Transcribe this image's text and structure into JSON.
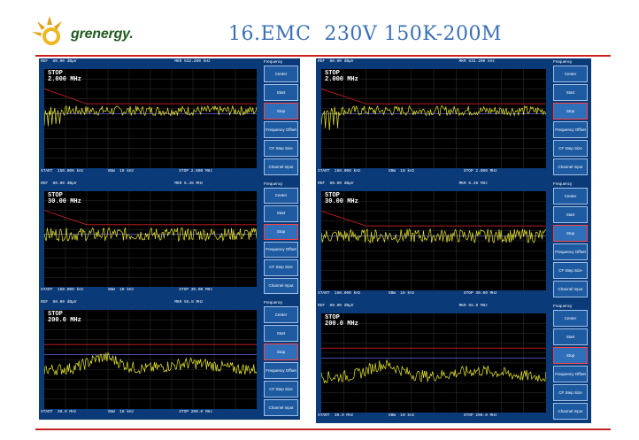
{
  "header": {
    "logo_text": "grenergy.",
    "title": "16.EMC  230V 150K-200M"
  },
  "colors": {
    "accent": "#3a6fb6",
    "rule": "#c8201e",
    "trace": "#e8e82a",
    "limit": "#d02020"
  },
  "softkeys": {
    "menu_title": "Frequency",
    "center": "Center",
    "start": "Start",
    "stop": "Stop",
    "freq_offset": "Frequency Offset",
    "on_off": "ON   OFF",
    "cf_step": "CF Step Size",
    "auto_man": "AUTO  MAN",
    "channel_input": "Channel Input"
  },
  "panels": [
    {
      "id": "l1",
      "stop_label": "STOP",
      "stop_value": "2.000 MHz",
      "ref": "REF  80.00 dBμV",
      "mkr": "MKR 532.200 kHz",
      "start": "START  150.000 kHz",
      "stopf": "STOP 2.000 MHz"
    },
    {
      "id": "r1",
      "stop_label": "STOP",
      "stop_value": "2.000 MHz",
      "ref": "REF  80.00 dBμV",
      "mkr": "MKR 532.200 kHz",
      "start": "START  150.000 kHz",
      "stopf": "STOP 2.000 MHz"
    },
    {
      "id": "l2",
      "stop_label": "STOP",
      "stop_value": "30.00 MHz",
      "ref": "REF  80.00 dBμV",
      "mkr": "MKR 6.48 MHz",
      "start": "START  150.000 kHz",
      "stopf": "STOP 30.00 MHz"
    },
    {
      "id": "r2",
      "stop_label": "STOP",
      "stop_value": "30.00 MHz",
      "ref": "REF  80.00 dBμV",
      "mkr": "MKR 6.48 MHz",
      "start": "START  150.000 kHz",
      "stopf": "STOP 30.00 MHz"
    },
    {
      "id": "l3",
      "stop_label": "STOP",
      "stop_value": "200.0 MHz",
      "ref": "REF  80.00 dBμV",
      "mkr": "MKR 55.8 MHz",
      "start": "START  30.0 MHz",
      "stopf": "STOP 200.0 MHz"
    },
    {
      "id": "r3",
      "stop_label": "STOP",
      "stop_value": "200.0 MHz",
      "ref": "REF  80.00 dBμV",
      "mkr": "MKR 55.8 MHz",
      "start": "START  30.0 MHz",
      "stopf": "STOP 200.0 MHz"
    }
  ],
  "labels": {
    "vbw": "VBW  10 kHz",
    "swp": "SWP  3.3 s",
    "att": "ATT  0.00 dB"
  }
}
